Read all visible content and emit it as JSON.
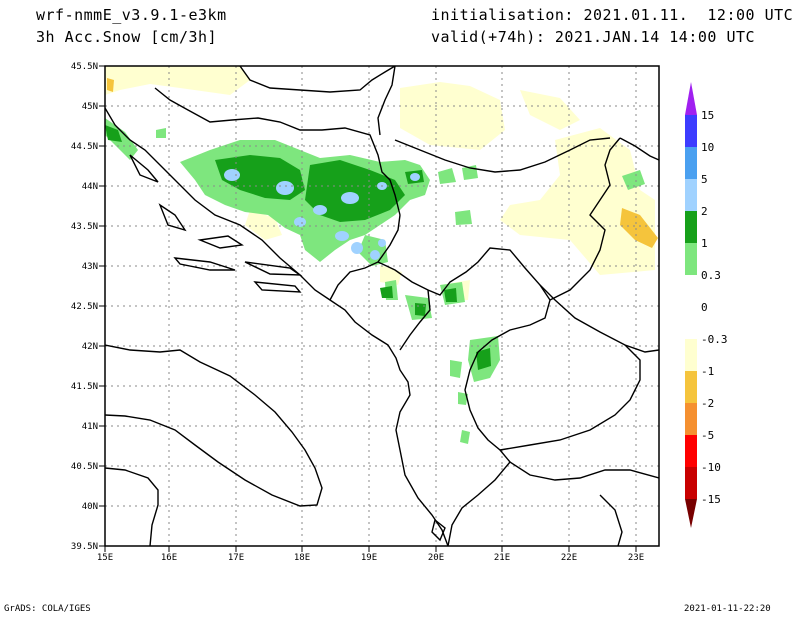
{
  "header": {
    "model": "wrf-nmmE_v3.9.1-e3km",
    "field": "3h Acc.Snow [cm/3h]",
    "init": "initialisation: 2021.01.11.  12:00 UTC",
    "valid": "valid(+74h): 2021.JAN.14 14:00 UTC"
  },
  "footer": {
    "credit": "GrADS: COLA/IGES",
    "timestamp": "2021-01-11-22:20"
  },
  "map": {
    "lon_labels": [
      "15E",
      "16E",
      "17E",
      "18E",
      "19E",
      "20E",
      "21E",
      "22E",
      "23E"
    ],
    "lat_labels": [
      "39.5N",
      "40N",
      "40.5N",
      "41N",
      "41.5N",
      "42N",
      "42.5N",
      "43N",
      "43.5N",
      "44N",
      "44.5N",
      "45N",
      "45.5N"
    ],
    "lon_range": [
      15,
      23.3
    ],
    "lat_range": [
      39.5,
      45.5
    ],
    "grid": true
  },
  "legend": {
    "levels": [
      "15",
      "10",
      "5",
      "2",
      "1",
      "0.3",
      "0",
      "-0.3",
      "-1",
      "-2",
      "-5",
      "-10",
      "-15"
    ],
    "colors": [
      "#a020f0",
      "#3c3cff",
      "#4aa0f0",
      "#a0d2ff",
      "#16a01a",
      "#7ee67e",
      "#ffffff",
      "#ffffd0",
      "#f5c43c",
      "#f59030",
      "#ff0000",
      "#c80000",
      "#a00000",
      "#780000"
    ]
  }
}
